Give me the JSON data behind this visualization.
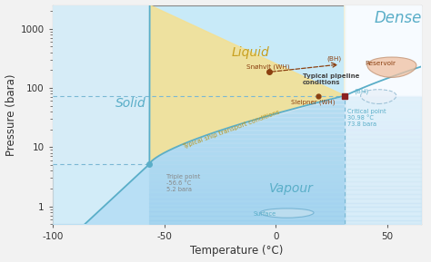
{
  "xlabel": "Temperature (°C)",
  "ylabel": "Pressure (bara)",
  "xlim": [
    -100,
    65
  ],
  "ylim_log": [
    0.5,
    2500
  ],
  "triple_T": -56.6,
  "triple_P": 5.18,
  "critical_T": 30.98,
  "critical_P": 73.8,
  "bg_color": "#f2f2f2",
  "plot_bg": "#ffffff",
  "vapour_color": "#7dcae8",
  "liquid_color_bottom": "#f5d87a",
  "liquid_color_top": "#faf0c8",
  "solid_color": "#a8d8ec",
  "dense_color": "#e8f4fa",
  "snohvit_T": -3,
  "snohvit_P": 185,
  "sleipner_T": 19,
  "sleipner_P": 73.8,
  "reservoir_T": 29,
  "reservoir_P": 250,
  "dashed_color": "#7ab8d4",
  "curve_color": "#5aaec8",
  "text_blue": "#5aaec8",
  "text_gold": "#c8a030",
  "text_brown": "#8b4010",
  "text_dark": "#444444",
  "text_gray": "#888888"
}
